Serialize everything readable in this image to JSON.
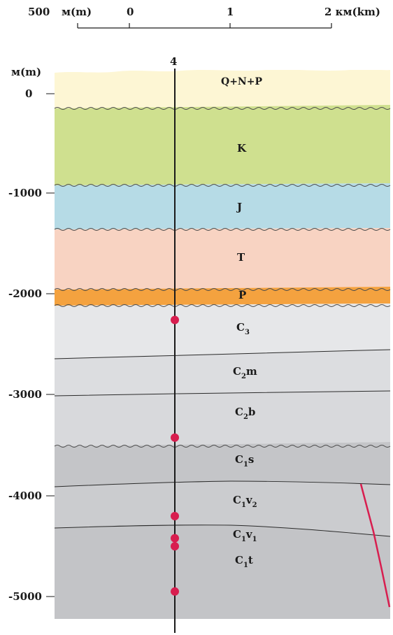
{
  "scale_bar": {
    "left_label": "500",
    "unit_left": "м(m)",
    "zero": "0",
    "one": "1",
    "right_label": "2 км(km)"
  },
  "depth_axis": {
    "unit": "м(m)",
    "ticks": [
      "0",
      "-1000",
      "-2000",
      "-3000",
      "-4000",
      "-5000"
    ]
  },
  "well": {
    "label": "4"
  },
  "layers": [
    {
      "id": "QNP",
      "label": "Q+N+P",
      "color": "#fdf6d4"
    },
    {
      "id": "K",
      "label": "K",
      "color": "#cfe08f"
    },
    {
      "id": "J",
      "label": "J",
      "color": "#b6dbe6"
    },
    {
      "id": "T",
      "label": "T",
      "color": "#f8d3c2"
    },
    {
      "id": "P",
      "label": "P",
      "color": "#f4a23f"
    },
    {
      "id": "C3",
      "base": "C",
      "sub": "3",
      "rest": "",
      "color": "#e6e7e9"
    },
    {
      "id": "C2m",
      "base": "C",
      "sub": "2",
      "rest": "m",
      "color": "#dcdde0"
    },
    {
      "id": "C2b",
      "base": "C",
      "sub": "2",
      "rest": "b",
      "color": "#d8d9dc"
    },
    {
      "id": "C1s",
      "base": "C",
      "sub": "1",
      "rest": "s",
      "color": "#c4c5c8"
    },
    {
      "id": "C1v2",
      "base": "C",
      "sub": "1",
      "rest": "v",
      "sub2": "2",
      "color": "#cbcccf"
    },
    {
      "id": "C1v1",
      "base": "C",
      "sub": "1",
      "rest": "v",
      "sub2": "1",
      "color": "#c6c7ca"
    },
    {
      "id": "C1t",
      "base": "C",
      "sub": "1",
      "rest": "t",
      "color": "#c0c1c4"
    }
  ],
  "colors": {
    "well_line": "#1a1a1a",
    "sample_point": "#d81e4f",
    "fault": "#d81e4f"
  },
  "sample_depths_m": [
    -2250,
    -3420,
    -4200,
    -4420,
    -4500,
    -4950
  ]
}
